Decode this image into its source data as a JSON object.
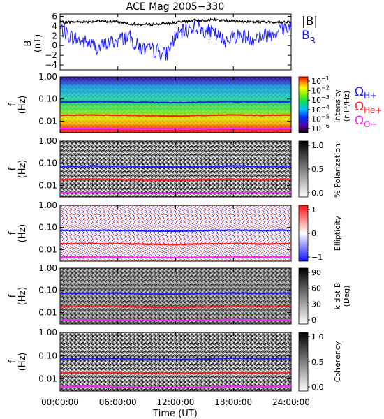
{
  "title": "ACE Mag 2005−330",
  "x_axis": {
    "label": "Time (UT)",
    "tick_labels": [
      "00:00:00",
      "06:00:00",
      "12:00:00",
      "18:00:00",
      "24:00:00"
    ]
  },
  "legend_top": {
    "b_total": "|B|",
    "b_r_main": "B",
    "b_r_sub": "R"
  },
  "legend_gyro": [
    {
      "main": "Ω",
      "sub": "H+",
      "color": "#2020ff"
    },
    {
      "main": "Ω",
      "sub": "He+",
      "color": "#ff2020"
    },
    {
      "main": "Ω",
      "sub": "O+",
      "color": "#ff20ff"
    }
  ],
  "colors": {
    "b_total": "#000000",
    "b_r": "#2020ff",
    "gyro_h": "#2020ff",
    "gyro_he": "#ff2020",
    "gyro_o": "#ff20ff"
  },
  "spectro_y_ticks": [
    "1.00",
    "0.10",
    "0.01"
  ],
  "spectro_y_label": {
    "main": "f",
    "unit": "(Hz)"
  },
  "panels": [
    {
      "id": "field",
      "ylabel": "B",
      "yunit": "(nT)",
      "y_ticks": [
        "6",
        "4",
        "2",
        "0",
        "−2",
        "−4"
      ]
    },
    {
      "id": "intensity",
      "colorbar_style": "rainbow",
      "colorbar_label": "Intensity",
      "colorbar_unit": "(nT²/Hz)",
      "colorbar_ticks": [
        {
          "base": "10",
          "exp": "−1"
        },
        {
          "base": "10",
          "exp": "−2"
        },
        {
          "base": "10",
          "exp": "−3"
        },
        {
          "base": "10",
          "exp": "−4"
        },
        {
          "base": "10",
          "exp": "−5"
        },
        {
          "base": "10",
          "exp": "−6"
        }
      ]
    },
    {
      "id": "polarization",
      "colorbar_style": "gray",
      "colorbar_label": "% Polarization",
      "colorbar_ticks": [
        "1.0",
        "0.5",
        "0.0"
      ]
    },
    {
      "id": "ellipticity",
      "colorbar_style": "bwr",
      "colorbar_label": "Ellipticity",
      "colorbar_ticks": [
        "1",
        "0",
        "−1"
      ]
    },
    {
      "id": "kdotb",
      "colorbar_style": "gray",
      "colorbar_label": "k dot B",
      "colorbar_unit": "(Deg)",
      "colorbar_ticks": [
        "90",
        "60",
        "30",
        "0"
      ]
    },
    {
      "id": "coherency",
      "colorbar_style": "gray",
      "colorbar_label": "Coherency",
      "colorbar_ticks": [
        "1.0",
        "0.5",
        "0.0"
      ]
    }
  ],
  "chart_data": {
    "type": "heatmap",
    "x_range_hours": [
      0,
      24
    ],
    "frequency_range_hz": [
      0.003,
      1.0
    ],
    "frequency_scale": "log",
    "field_series": [
      {
        "name": "|B|",
        "color": "#000000",
        "x_hours": [
          0,
          2,
          4,
          6,
          8,
          10,
          12,
          14,
          16,
          18,
          20,
          22,
          24
        ],
        "values_nT": [
          4.8,
          4.9,
          5.0,
          4.9,
          4.3,
          4.4,
          4.7,
          5.2,
          5.3,
          5.0,
          4.9,
          4.8,
          4.9
        ]
      },
      {
        "name": "B_R",
        "color": "#2020ff",
        "x_hours": [
          0,
          1,
          2,
          3,
          4,
          5,
          6,
          7,
          8,
          9,
          10,
          11,
          12,
          13,
          14,
          15,
          16,
          17,
          18,
          19,
          20,
          21,
          22,
          23,
          24
        ],
        "values_nT": [
          3.5,
          2.0,
          1.0,
          0.5,
          -0.5,
          0.5,
          1.0,
          2.0,
          0.0,
          -1.0,
          -1.0,
          -2.0,
          2.0,
          3.0,
          4.0,
          3.0,
          2.5,
          1.0,
          2.0,
          2.0,
          1.5,
          2.0,
          2.5,
          3.5,
          4.0
        ],
        "ylim": [
          -5,
          6.5
        ]
      }
    ],
    "gyrofrequency_lines": [
      {
        "name": "ΩH+",
        "color": "#2020ff",
        "x_hours": [
          0,
          3,
          6,
          9,
          12,
          15,
          18,
          21,
          24
        ],
        "freq_hz": [
          0.073,
          0.075,
          0.074,
          0.07,
          0.068,
          0.072,
          0.076,
          0.073,
          0.075
        ]
      },
      {
        "name": "ΩHe+",
        "color": "#ff2020",
        "x_hours": [
          0,
          3,
          6,
          9,
          12,
          15,
          18,
          21,
          24
        ],
        "freq_hz": [
          0.018,
          0.019,
          0.0185,
          0.0175,
          0.017,
          0.018,
          0.019,
          0.018,
          0.019
        ]
      },
      {
        "name": "ΩO+",
        "color": "#ff20ff",
        "x_hours": [
          0,
          3,
          6,
          9,
          12,
          15,
          18,
          21,
          24
        ],
        "freq_hz": [
          0.0046,
          0.0047,
          0.0046,
          0.0044,
          0.0043,
          0.0045,
          0.0047,
          0.0046,
          0.0047
        ]
      }
    ],
    "colorbar_ranges": {
      "intensity_log10": [
        -6.5,
        -0.5
      ],
      "polarization": [
        0,
        1
      ],
      "ellipticity": [
        -1,
        1
      ],
      "kdotb_deg": [
        0,
        90
      ],
      "coherency": [
        0,
        1
      ]
    }
  }
}
